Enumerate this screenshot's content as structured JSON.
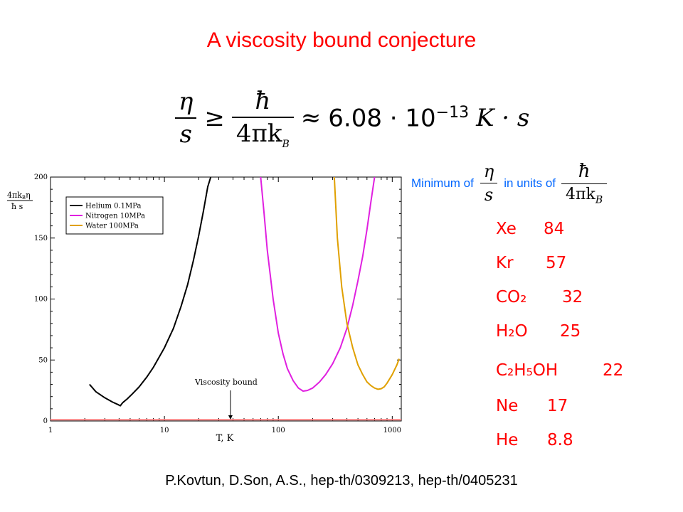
{
  "slide": {
    "title": "A viscosity bound conjecture",
    "footer": "P.Kovtun, D.Son, A.S., hep-th/0309213, hep-th/0405231"
  },
  "formula": {
    "eta": "η",
    "s": "s",
    "geq": "≥",
    "hbar": "ħ",
    "denominator": "4πk",
    "sub": "B",
    "approx": "≈",
    "value": "6.08 · 10",
    "exponent": "−13",
    "unit": "K · s"
  },
  "minimum_line": {
    "prefix": "Minimum of",
    "middle": "in units of",
    "eta": "η",
    "s": "s",
    "hbar": "ħ",
    "denominator": "4πk",
    "sub": "B"
  },
  "substances": [
    {
      "name": "Xe",
      "value": "84"
    },
    {
      "name": "Kr",
      "value": "57"
    },
    {
      "name": "CO₂",
      "value": "32"
    },
    {
      "name": "H₂O",
      "value": "25"
    },
    {
      "name": "C₂H₅OH",
      "value": "22"
    },
    {
      "name": "Ne",
      "value": "17"
    },
    {
      "name": "He",
      "value": "8.8"
    }
  ],
  "chart_data": {
    "type": "line",
    "xlabel": "T, K",
    "ylabel_numerator": "4πk",
    "ylabel_numerator_sub": "B",
    "ylabel_numerator_tail": "η",
    "ylabel_denominator": "ħ s",
    "xscale": "log",
    "xlim": [
      1,
      1200
    ],
    "ylim": [
      0,
      200
    ],
    "xticks": [
      1,
      10,
      100,
      1000
    ],
    "xtick_labels": [
      "1",
      "10",
      "100",
      "1000"
    ],
    "yticks": [
      0,
      50,
      100,
      150,
      200
    ],
    "ytick_labels": [
      "0",
      "50",
      "100",
      "150",
      "200"
    ],
    "legend_position": "top-left",
    "annotation": {
      "text": "Viscosity bound",
      "x": 38,
      "y": 0
    },
    "bound_line": {
      "y": 1,
      "color": "#ff8080"
    },
    "series": [
      {
        "name": "Helium 0.1MPa",
        "color": "#000000",
        "x": [
          2.2,
          2.5,
          3.0,
          3.5,
          3.9,
          4.1,
          4.3,
          4.7,
          5.2,
          6.0,
          7.0,
          8.0,
          10.0,
          12.0,
          14.0,
          16.0,
          18.0,
          20.0,
          22.0,
          24.0,
          25.5
        ],
        "y": [
          30,
          24,
          19,
          15.5,
          13.5,
          12.5,
          15,
          18,
          22,
          28,
          36,
          44,
          60,
          76,
          94,
          112,
          132,
          152,
          172,
          192,
          200
        ]
      },
      {
        "name": "Nitrogen 10MPa",
        "color": "#e020e0",
        "x": [
          70,
          75,
          80,
          90,
          100,
          110,
          120,
          135,
          150,
          165,
          180,
          200,
          230,
          260,
          300,
          350,
          400,
          450,
          500,
          550,
          600,
          650,
          700
        ],
        "y": [
          200,
          170,
          140,
          100,
          72,
          55,
          43,
          33,
          27,
          24.5,
          25,
          27,
          32,
          38,
          47,
          60,
          76,
          95,
          115,
          135,
          157,
          180,
          200
        ]
      },
      {
        "name": "Water 100MPa",
        "color": "#e0a000",
        "x": [
          310,
          330,
          360,
          400,
          450,
          500,
          550,
          600,
          650,
          700,
          750,
          800,
          850,
          900,
          1000,
          1100,
          1150
        ],
        "y": [
          200,
          150,
          110,
          80,
          60,
          46,
          38,
          32,
          29,
          27,
          26,
          26.5,
          28,
          31,
          38,
          46,
          51
        ]
      }
    ]
  }
}
